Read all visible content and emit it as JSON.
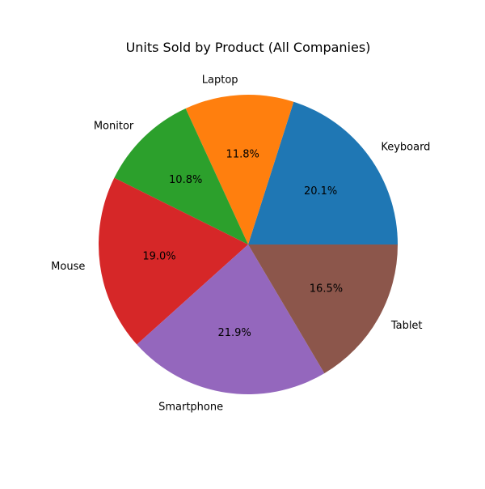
{
  "chart_data": {
    "type": "pie",
    "title": "Units Sold by Product (All Companies)",
    "categories": [
      "Keyboard",
      "Laptop",
      "Monitor",
      "Mouse",
      "Smartphone",
      "Tablet"
    ],
    "values": [
      20.1,
      11.8,
      10.8,
      19.0,
      21.9,
      16.5
    ],
    "percent_labels": [
      "20.1%",
      "11.8%",
      "10.8%",
      "19.0%",
      "21.9%",
      "16.5%"
    ],
    "colors": [
      "#1f77b4",
      "#ff7f0e",
      "#2ca02c",
      "#d62728",
      "#9467bd",
      "#8c564b"
    ],
    "start_angle_deg": 0,
    "direction": "counterclockwise"
  }
}
